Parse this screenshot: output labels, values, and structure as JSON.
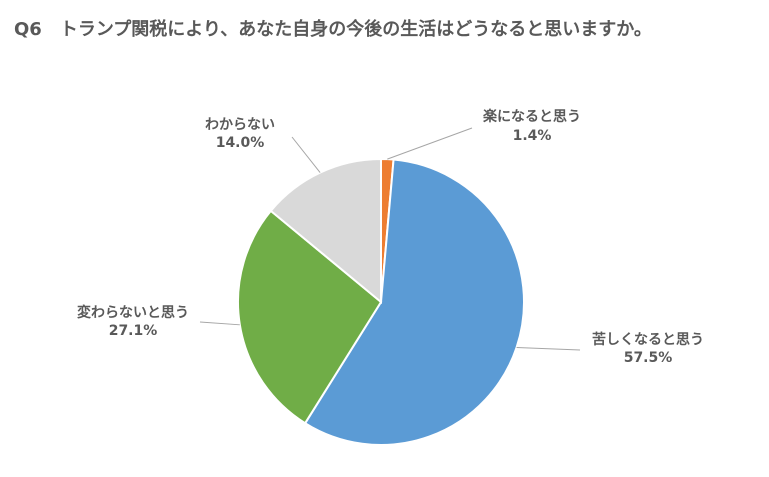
{
  "chart_data": {
    "type": "pie",
    "title": "Q6　トランプ関税により、あなた自身の今後の生活はどうなると思いますか。",
    "categories": [
      "楽になると思う",
      "苦しくなると思う",
      "変わらないと思う",
      "わからない"
    ],
    "values": [
      1.4,
      57.5,
      27.1,
      14.0
    ],
    "value_labels": [
      "1.4%",
      "57.5%",
      "27.1%",
      "14.0%"
    ],
    "colors": [
      "#ed7d31",
      "#5b9bd5",
      "#70ad47",
      "#d9d9d9"
    ]
  }
}
